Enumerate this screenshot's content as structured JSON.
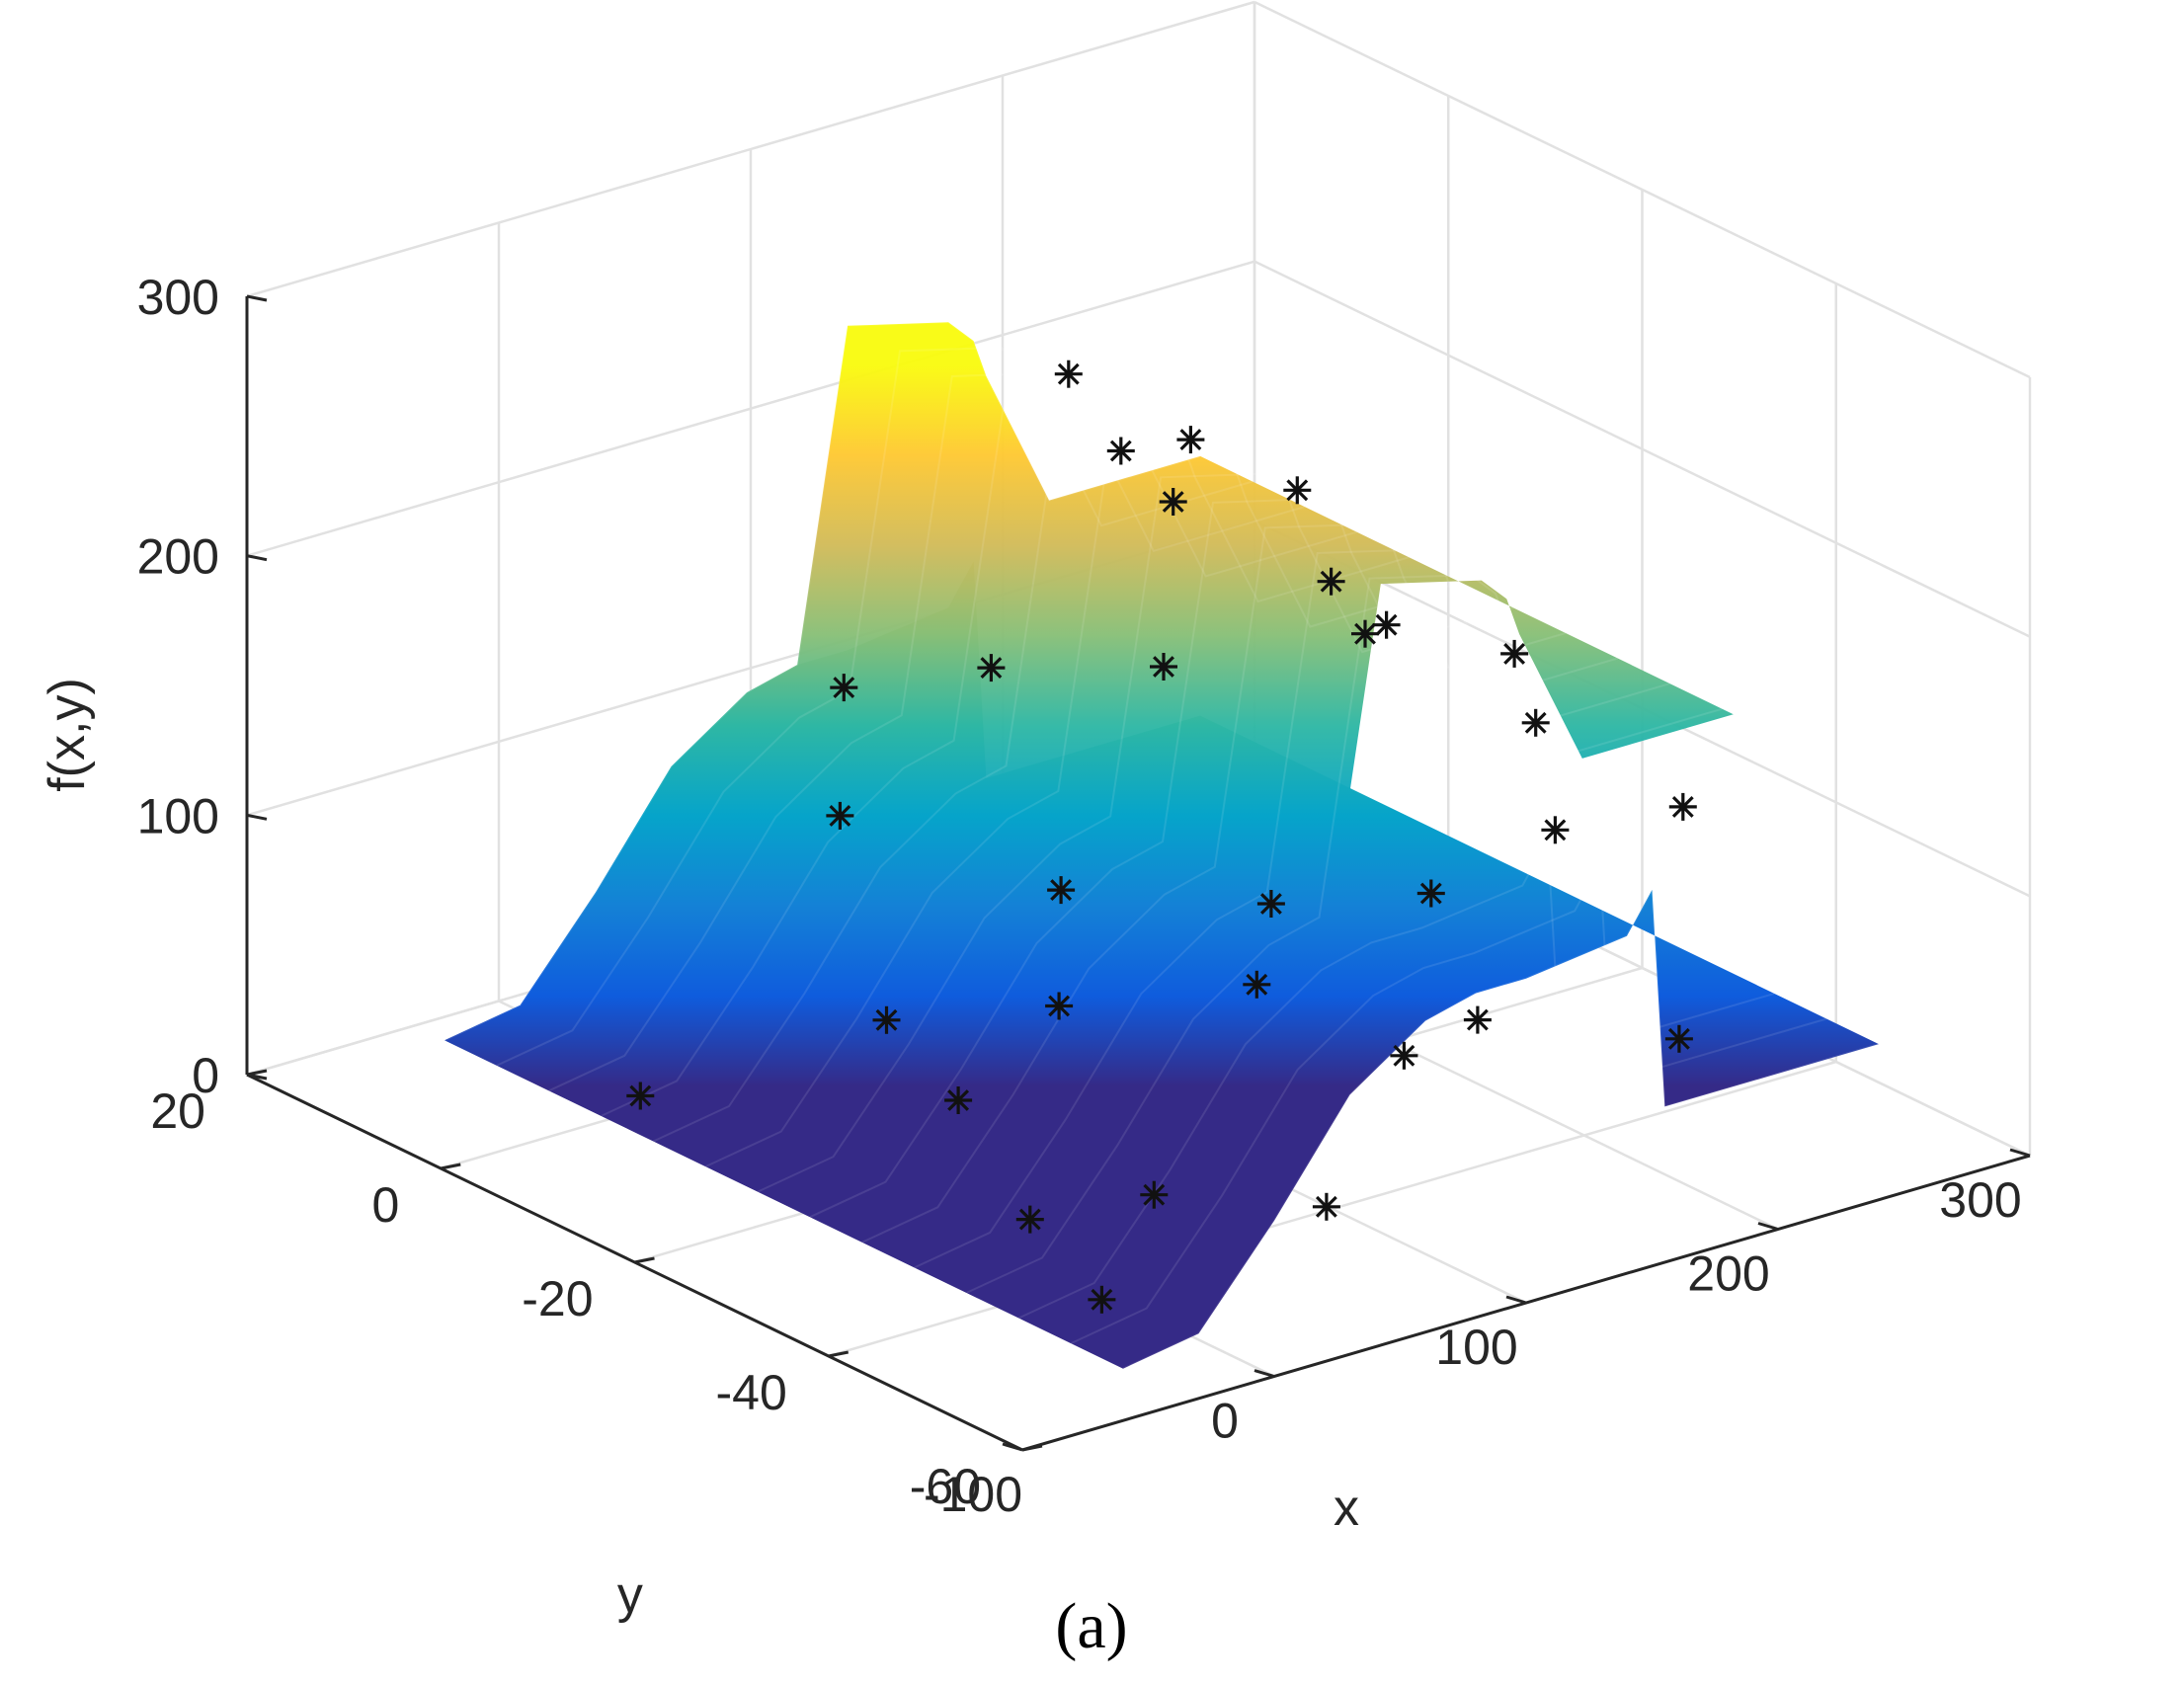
{
  "chart_data": {
    "type": "surface",
    "title": "",
    "xlabel": "x",
    "ylabel": "y",
    "zlabel": "f(x,y)",
    "xlim": [
      -100,
      300
    ],
    "ylim": [
      -60,
      20
    ],
    "zlim": [
      0,
      300
    ],
    "x_ticks": [
      "-100",
      "0",
      "100",
      "200",
      "300"
    ],
    "y_ticks": [
      "20",
      "0",
      "-20",
      "-40",
      "-60"
    ],
    "z_ticks": [
      "0",
      "100",
      "200",
      "300"
    ],
    "grid": true,
    "colormap": "parula",
    "colormap_colors": [
      "#352a87",
      "#0f5cdd",
      "#1481d6",
      "#06a4ca",
      "#2eb7a4",
      "#87bf77",
      "#d1bb59",
      "#fec832",
      "#f9fb0e"
    ],
    "surface": {
      "x_range": [
        -60,
        240
      ],
      "y_range": [
        -60,
        10
      ],
      "profile_x": [
        -60,
        -30,
        0,
        30,
        60,
        80,
        100,
        140,
        150,
        155,
        180,
        240
      ],
      "profile_high_y": [
        20,
        25,
        60,
        100,
        120,
        125,
        250,
        240,
        230,
        215,
        160,
        160
      ],
      "profile_low_y": [
        20,
        25,
        60,
        100,
        120,
        125,
        125,
        130,
        145,
        60,
        60,
        60
      ],
      "marker_color": "#111111"
    },
    "points": [
      {
        "x": -40,
        "y": -5,
        "z": 20
      },
      {
        "x": -30,
        "y": -50,
        "z": 20
      },
      {
        "x": -20,
        "y": -40,
        "z": 30
      },
      {
        "x": -10,
        "y": -30,
        "z": 55
      },
      {
        "x": 0,
        "y": -20,
        "z": 65
      },
      {
        "x": 10,
        "y": -45,
        "z": 40
      },
      {
        "x": 20,
        "y": -10,
        "z": 120
      },
      {
        "x": 30,
        "y": -30,
        "z": 80
      },
      {
        "x": 40,
        "y": -55,
        "z": 45
      },
      {
        "x": 50,
        "y": -25,
        "z": 110
      },
      {
        "x": 60,
        "y": 0,
        "z": 140
      },
      {
        "x": 70,
        "y": -40,
        "z": 95
      },
      {
        "x": 80,
        "y": -10,
        "z": 160
      },
      {
        "x": 90,
        "y": -50,
        "z": 80
      },
      {
        "x": 95,
        "y": -35,
        "z": 110
      },
      {
        "x": 100,
        "y": -55,
        "z": 100
      },
      {
        "x": 110,
        "y": -20,
        "z": 170
      },
      {
        "x": 120,
        "y": -45,
        "z": 125
      },
      {
        "x": 130,
        "y": -5,
        "z": 250
      },
      {
        "x": 140,
        "y": -15,
        "z": 240
      },
      {
        "x": 150,
        "y": -50,
        "z": 150
      },
      {
        "x": 160,
        "y": -30,
        "z": 190
      },
      {
        "x": 170,
        "y": 0,
        "z": 200
      },
      {
        "x": 180,
        "y": -55,
        "z": 70
      },
      {
        "x": 190,
        "y": -20,
        "z": 160
      },
      {
        "x": 200,
        "y": -35,
        "z": 150
      },
      {
        "x": 210,
        "y": 5,
        "z": 160
      },
      {
        "x": 215,
        "y": -10,
        "z": 155
      },
      {
        "x": 220,
        "y": -45,
        "z": 130
      },
      {
        "x": 230,
        "y": -25,
        "z": 150
      },
      {
        "x": 240,
        "y": 0,
        "z": 165
      }
    ]
  },
  "caption": "(a)"
}
